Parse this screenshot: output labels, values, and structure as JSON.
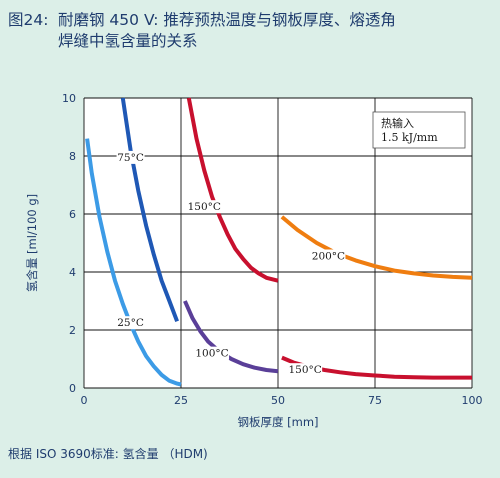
{
  "figure_number": "图24:",
  "title_line1": "耐磨钢 450 V: 推荐预热温度与钢板厚度、熔透角",
  "title_line2": "焊缝中氢含量的关系",
  "footer": "根据 ISO 3690标准: 氢含量 （HDM)",
  "chart_data": {
    "type": "line",
    "xlabel": "钢板厚度 [mm]",
    "ylabel": "氢含量 [ml/100 g]",
    "xlim": [
      0,
      100
    ],
    "ylim": [
      0,
      10
    ],
    "xticks": [
      0,
      25,
      50,
      75,
      100
    ],
    "yticks": [
      0,
      2,
      4,
      6,
      8,
      10
    ],
    "grid": true,
    "annotation_box": {
      "line1": "热输入",
      "line2": "1.5 kJ/mm"
    },
    "colors": {
      "grid": "#111111",
      "plot_bg": "#ffffff",
      "axis_text": "#1f3c6e"
    },
    "series": [
      {
        "name": "25°C",
        "color": "#3c9be6",
        "x": [
          0.8,
          2,
          4,
          6,
          8,
          10,
          12,
          14,
          16,
          18,
          20,
          22,
          24,
          25
        ],
        "y": [
          8.6,
          7.4,
          5.9,
          4.7,
          3.7,
          2.9,
          2.2,
          1.6,
          1.1,
          0.75,
          0.45,
          0.25,
          0.15,
          0.12
        ],
        "label_at": [
          12,
          2.2
        ]
      },
      {
        "name": "75°C",
        "color": "#1f58b5",
        "x": [
          10,
          12,
          14,
          16,
          18,
          20,
          22,
          24
        ],
        "y": [
          10.0,
          8.2,
          6.8,
          5.6,
          4.6,
          3.7,
          3.0,
          2.3
        ],
        "label_at": [
          12,
          7.9
        ]
      },
      {
        "name": "100°C",
        "color": "#5a3f98",
        "x": [
          26,
          28,
          30,
          32,
          35,
          38,
          41,
          44,
          47,
          50
        ],
        "y": [
          3.0,
          2.4,
          1.95,
          1.6,
          1.25,
          1.0,
          0.82,
          0.7,
          0.62,
          0.58
        ],
        "label_at": [
          33,
          1.15
        ]
      },
      {
        "name": "150°C",
        "color": "#c8102e",
        "x": [
          27,
          29,
          31,
          33,
          35,
          37,
          39,
          41,
          43,
          45,
          47,
          50
        ],
        "y": [
          10.0,
          8.6,
          7.5,
          6.6,
          5.9,
          5.3,
          4.8,
          4.45,
          4.15,
          3.95,
          3.8,
          3.7
        ],
        "label_at": [
          31,
          6.2
        ]
      },
      {
        "name": "150°C",
        "color": "#c8102e",
        "x": [
          51,
          54,
          58,
          62,
          66,
          70,
          75,
          80,
          85,
          90,
          95,
          100
        ],
        "y": [
          1.05,
          0.88,
          0.73,
          0.62,
          0.54,
          0.48,
          0.43,
          0.39,
          0.37,
          0.36,
          0.36,
          0.36
        ],
        "label_at": [
          57,
          0.58
        ]
      },
      {
        "name": "200°C",
        "color": "#ef7d10",
        "x": [
          51,
          55,
          60,
          65,
          70,
          75,
          80,
          85,
          90,
          95,
          100
        ],
        "y": [
          5.9,
          5.45,
          5.0,
          4.65,
          4.4,
          4.2,
          4.05,
          3.95,
          3.88,
          3.83,
          3.8
        ],
        "label_at": [
          63,
          4.5
        ]
      }
    ]
  }
}
